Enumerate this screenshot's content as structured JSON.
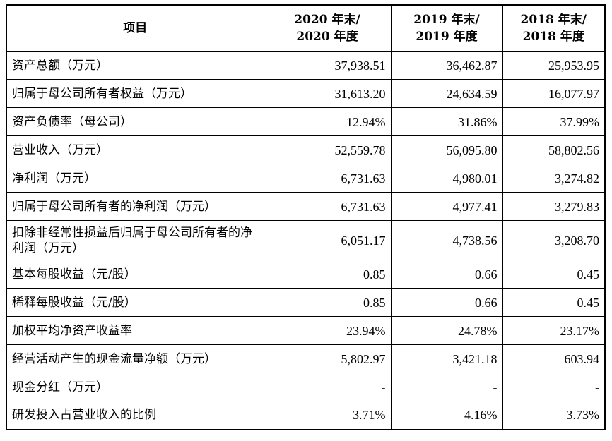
{
  "table": {
    "headers": [
      {
        "line1": "项目",
        "line2": ""
      },
      {
        "line1": "2020 年末/",
        "line2": "2020 年度"
      },
      {
        "line1": "2019 年末/",
        "line2": "2019 年度"
      },
      {
        "line1": "2018 年末/",
        "line2": "2018 年度"
      }
    ],
    "rows": [
      {
        "label": "资产总额（万元）",
        "values": [
          "37,938.51",
          "36,462.87",
          "25,953.95"
        ]
      },
      {
        "label": "归属于母公司所有者权益（万元）",
        "values": [
          "31,613.20",
          "24,634.59",
          "16,077.97"
        ]
      },
      {
        "label": "资产负债率（母公司）",
        "values": [
          "12.94%",
          "31.86%",
          "37.99%"
        ]
      },
      {
        "label": "营业收入（万元）",
        "values": [
          "52,559.78",
          "56,095.80",
          "58,802.56"
        ]
      },
      {
        "label": "净利润（万元）",
        "values": [
          "6,731.63",
          "4,980.01",
          "3,274.82"
        ]
      },
      {
        "label": "归属于母公司所有者的净利润（万元）",
        "values": [
          "6,731.63",
          "4,977.41",
          "3,279.83"
        ]
      },
      {
        "label": "扣除非经常性损益后归属于母公司所有者的净利润（万元）",
        "values": [
          "6,051.17",
          "4,738.56",
          "3,208.70"
        ]
      },
      {
        "label": "基本每股收益（元/股）",
        "values": [
          "0.85",
          "0.66",
          "0.45"
        ]
      },
      {
        "label": "稀释每股收益（元/股）",
        "values": [
          "0.85",
          "0.66",
          "0.45"
        ]
      },
      {
        "label": "加权平均净资产收益率",
        "values": [
          "23.94%",
          "24.78%",
          "23.17%"
        ]
      },
      {
        "label": "经营活动产生的现金流量净额（万元）",
        "values": [
          "5,802.97",
          "3,421.18",
          "603.94"
        ]
      },
      {
        "label": "现金分红（万元）",
        "values": [
          "-",
          "-",
          "-"
        ]
      },
      {
        "label": "研发投入占营业收入的比例",
        "values": [
          "3.71%",
          "4.16%",
          "3.73%"
        ]
      }
    ]
  }
}
